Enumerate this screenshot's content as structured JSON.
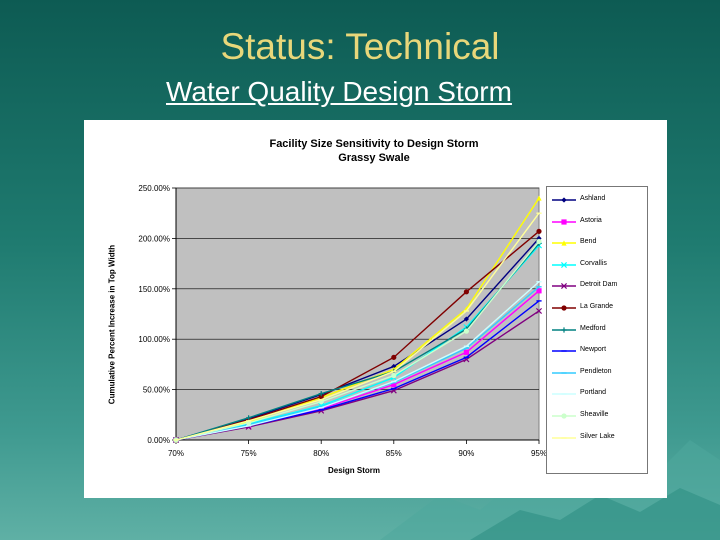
{
  "slide": {
    "title": "Status: Technical",
    "subtitle": "Water Quality Design Storm"
  },
  "chart_data": {
    "type": "line",
    "title": "Facility Size Sensitivity to Design Storm",
    "subtitle": "Grassy Swale",
    "xlabel": "Design Storm",
    "ylabel": "Cumulative Percent Increase in Top Width",
    "categories": [
      "70%",
      "75%",
      "80%",
      "85%",
      "90%",
      "95%"
    ],
    "ylim": [
      0,
      250
    ],
    "yticks": [
      "0.00%",
      "50.00%",
      "100.00%",
      "150.00%",
      "200.00%",
      "250.00%"
    ],
    "grid": true,
    "plot_background": "#c0c0c0",
    "legend_position": "right",
    "series": [
      {
        "name": "Ashland",
        "color": "#000080",
        "marker": "diamond",
        "values": [
          0,
          21,
          45,
          73,
          120,
          200
        ]
      },
      {
        "name": "Astoria",
        "color": "#ff00ff",
        "marker": "square",
        "values": [
          0,
          14,
          31,
          55,
          87,
          148
        ]
      },
      {
        "name": "Bend",
        "color": "#ffff00",
        "marker": "triangle",
        "values": [
          0,
          18,
          42,
          70,
          130,
          240
        ]
      },
      {
        "name": "Corvallis",
        "color": "#00ffff",
        "marker": "x",
        "values": [
          0,
          16,
          34,
          62,
          112,
          193
        ]
      },
      {
        "name": "Detroit Dam",
        "color": "#800080",
        "marker": "x",
        "values": [
          0,
          13,
          29,
          49,
          80,
          128
        ]
      },
      {
        "name": "La Grande",
        "color": "#800000",
        "marker": "circle",
        "values": [
          0,
          20,
          43,
          82,
          147,
          207
        ]
      },
      {
        "name": "Medford",
        "color": "#008080",
        "marker": "plus",
        "values": [
          0,
          22,
          46,
          68,
          110,
          195
        ]
      },
      {
        "name": "Newport",
        "color": "#0000ff",
        "marker": "dash",
        "values": [
          0,
          14,
          30,
          51,
          82,
          138
        ]
      },
      {
        "name": "Pendleton",
        "color": "#33ccff",
        "marker": "dash",
        "values": [
          0,
          15,
          33,
          57,
          91,
          152
        ]
      },
      {
        "name": "Portland",
        "color": "#ccffff",
        "marker": "dash",
        "values": [
          0,
          14,
          32,
          58,
          93,
          157
        ]
      },
      {
        "name": "Sheaville",
        "color": "#ccffcc",
        "marker": "circle",
        "values": [
          0,
          17,
          38,
          64,
          108,
          197
        ]
      },
      {
        "name": "Silver Lake",
        "color": "#ffff99",
        "marker": "dash",
        "values": [
          0,
          19,
          40,
          68,
          128,
          225
        ]
      }
    ]
  }
}
